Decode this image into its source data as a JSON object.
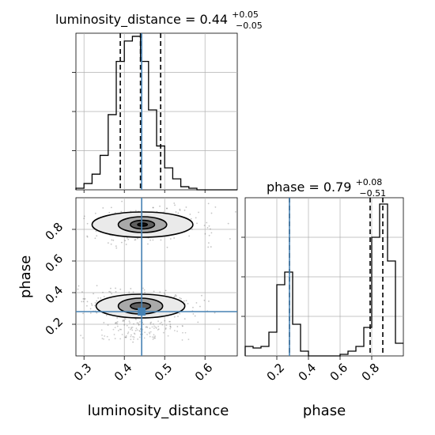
{
  "chart_data": [
    {
      "type": "histogram",
      "panel": "luminosity_distance-1d",
      "title": {
        "text": "luminosity_distance = 0.44",
        "sup": "+0.05",
        "sub": "−0.05"
      },
      "xlim": [
        0.28,
        0.68
      ],
      "bins": {
        "start": 0.28,
        "width": 0.02,
        "counts": [
          1,
          4,
          10,
          22,
          48,
          82,
          95,
          98,
          82,
          51,
          28,
          14,
          7,
          2,
          1,
          0,
          0,
          0,
          0,
          0
        ]
      },
      "quantiles": [
        0.39,
        0.44,
        0.49
      ],
      "truth": 0.443,
      "ylim": [
        0,
        100
      ]
    },
    {
      "type": "histogram",
      "panel": "phase-1d",
      "title": {
        "text": "phase = 0.79",
        "sup": "+0.08",
        "sub": "−0.51"
      },
      "xlim": [
        0.0,
        1.0
      ],
      "x_ticks": [
        "0.2",
        "0.4",
        "0.6",
        "0.8"
      ],
      "xlabel": "phase",
      "bins": {
        "start": 0.0,
        "width": 0.05,
        "counts": [
          6,
          5,
          6,
          15,
          45,
          53,
          20,
          3,
          0,
          0,
          0,
          0,
          1,
          3,
          6,
          18,
          75,
          96,
          60,
          8
        ]
      },
      "quantiles": [
        0.28,
        0.79,
        0.87
      ],
      "truth": 0.28,
      "ylim": [
        0,
        100
      ]
    },
    {
      "type": "contour",
      "panel": "phase-vs-luminosity_distance-2d",
      "xlim": [
        0.28,
        0.68
      ],
      "ylim": [
        0.0,
        1.0
      ],
      "x_ticks": [
        "0.3",
        "0.4",
        "0.5",
        "0.6"
      ],
      "y_ticks": [
        "0.2",
        "0.4",
        "0.6",
        "0.8"
      ],
      "xlabel": "luminosity_distance",
      "ylabel": "phase",
      "modes": [
        {
          "x": 0.445,
          "y": 0.83,
          "levels": [
            {
              "rx": 0.125,
              "ry": 0.08,
              "fill": "#eaeaea"
            },
            {
              "rx": 0.06,
              "ry": 0.05,
              "fill": "#a9a9a9"
            },
            {
              "rx": 0.03,
              "ry": 0.027,
              "fill": "#5f5f5f"
            },
            {
              "rx": 0.012,
              "ry": 0.01,
              "fill": "#111111"
            }
          ]
        },
        {
          "x": 0.44,
          "y": 0.315,
          "levels": [
            {
              "rx": 0.11,
              "ry": 0.075,
              "fill": "#eaeaea"
            },
            {
              "rx": 0.055,
              "ry": 0.05,
              "fill": "#a9a9a9"
            },
            {
              "rx": 0.025,
              "ry": 0.022,
              "fill": "#5f5f5f"
            }
          ]
        }
      ],
      "truth": {
        "x": 0.443,
        "y": 0.28
      }
    }
  ],
  "colors": {
    "truth": "#4682b4",
    "hist": "#000000",
    "grid": "#b0b0b0",
    "quantile": "#000000",
    "points": "#555555"
  }
}
